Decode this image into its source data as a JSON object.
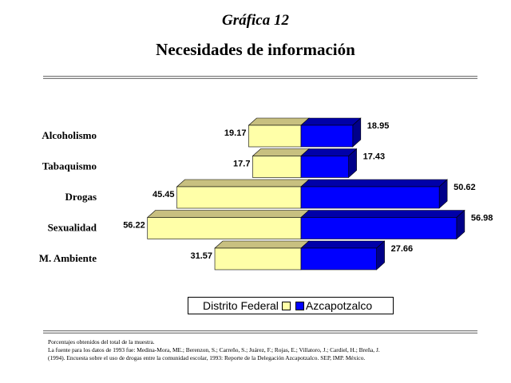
{
  "header": {
    "kicker": "Gráfica 12",
    "title": "Necesidades de información"
  },
  "colors": {
    "series1_face": "#FFFFA8",
    "series1_top": "#C8C080",
    "series2_face": "#0000FF",
    "series2_top": "#0000A8",
    "series2_side": "#00008A"
  },
  "chart_data": {
    "type": "bar",
    "orientation": "horizontal-diverging-3d",
    "categories": [
      "Alcoholismo",
      "Tabaquismo",
      "Drogas",
      "Sexualidad",
      "M. Ambiente"
    ],
    "series": [
      {
        "name": "Distrito Federal",
        "values": [
          19.17,
          17.7,
          45.45,
          56.22,
          31.57
        ],
        "labels": [
          "19.17",
          "17.7",
          "45.45",
          "56.22",
          "31.57"
        ]
      },
      {
        "name": "Azcapotzalco",
        "values": [
          18.95,
          17.43,
          50.62,
          56.98,
          27.66
        ],
        "labels": [
          "18.95",
          "17.43",
          "50.62",
          "56.98",
          "27.66"
        ]
      }
    ],
    "legend": "bottom"
  },
  "footnotes": [
    "Porcentajes obtenidos del total de la muestra.",
    "La fuente para los datos de 1993 fue: Medina-Mora, ME.; Berenzon, S.; Carreño, S.; Juárez, F.; Rojas, E.; Villatoro, J.; Cardiel, H.; Breña, J.",
    "(1994). Encuesta sobre el uso de drogas entre la comunidad escolar, 1993: Reporte de la Delegación Azcapotzalco. SEP, IMP. México."
  ]
}
